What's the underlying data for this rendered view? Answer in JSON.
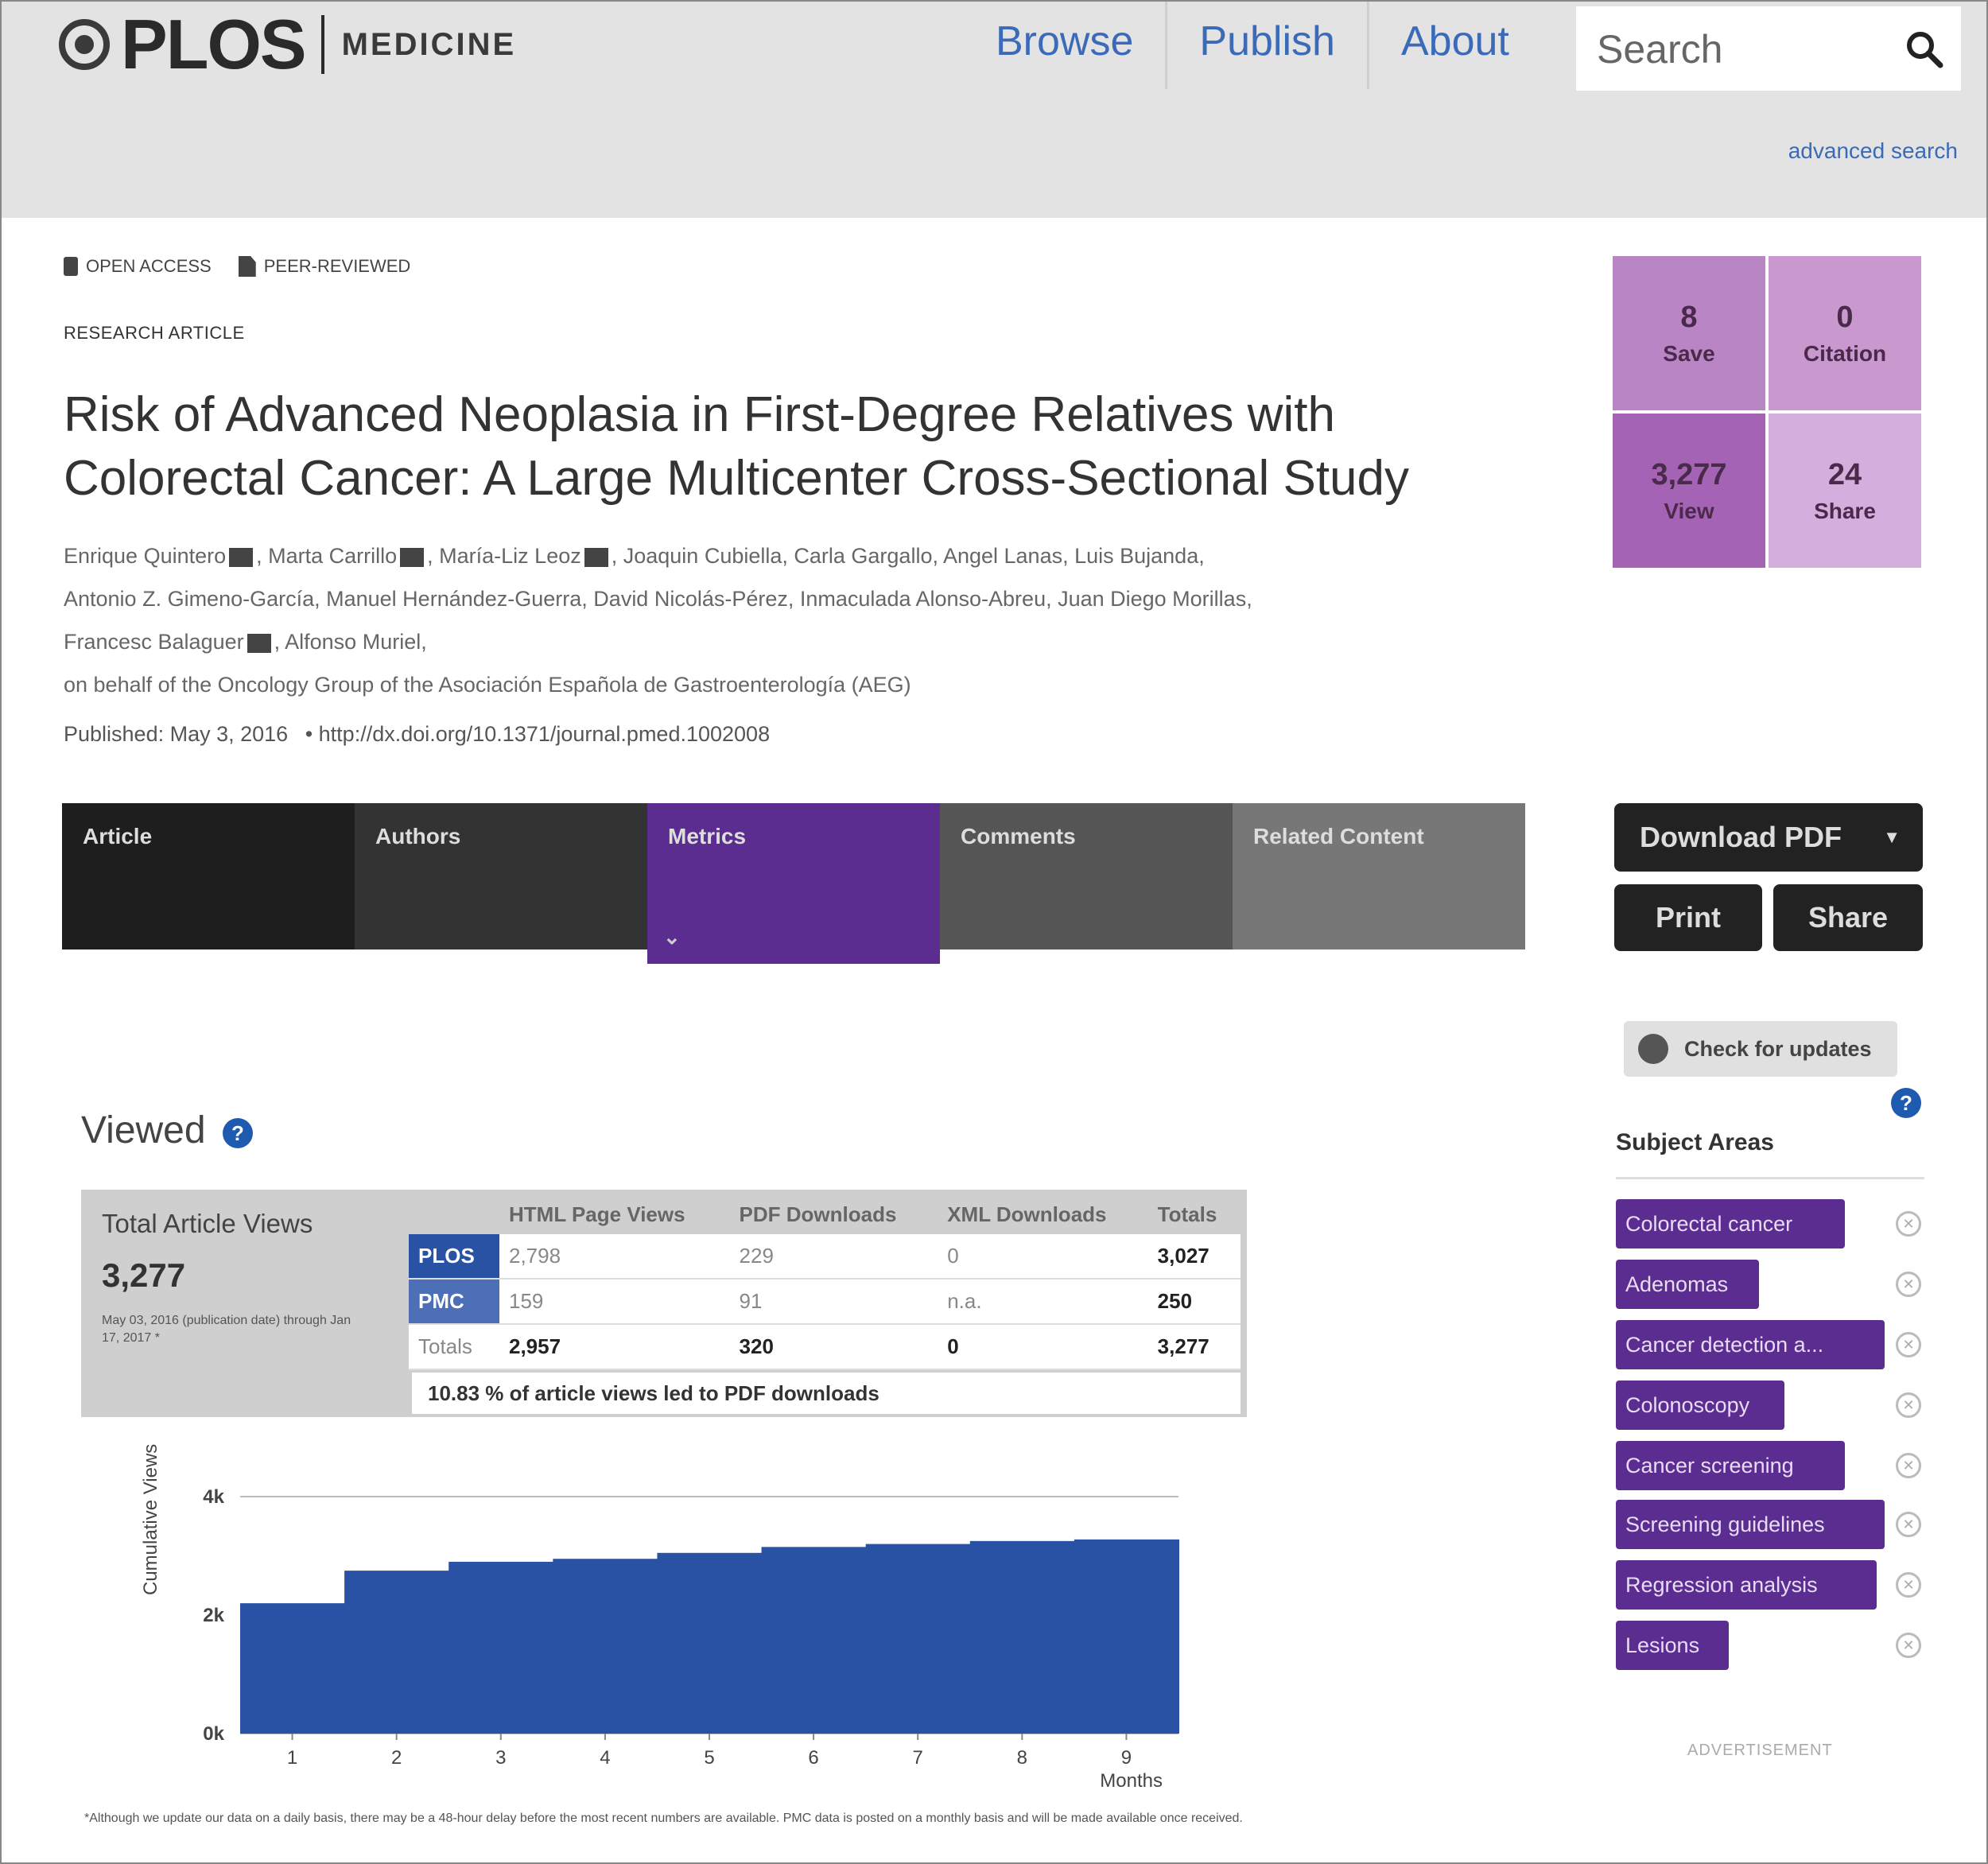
{
  "header": {
    "logo_text": "PLOS",
    "journal": "MEDICINE",
    "nav": [
      "Browse",
      "Publish",
      "About"
    ],
    "search_placeholder": "Search",
    "advanced_search": "advanced search"
  },
  "article": {
    "badges": [
      "OPEN ACCESS",
      "PEER-REVIEWED"
    ],
    "type": "RESEARCH ARTICLE",
    "title": "Risk of Advanced Neoplasia in First-Degree Relatives with Colorectal Cancer: A Large Multicenter Cross-Sectional Study",
    "authors_line1": "Enrique Quintero",
    "authors_line1b": ", Marta Carrillo",
    "authors_line1c": ", María-Liz Leoz",
    "authors_line1d": ", Joaquin Cubiella, Carla Gargallo, Angel Lanas, Luis Bujanda,",
    "authors_line2": "Antonio Z. Gimeno-García, Manuel Hernández-Guerra, David Nicolás-Pérez, Inmaculada Alonso-Abreu, Juan Diego Morillas,",
    "authors_line3a": "Francesc Balaguer",
    "authors_line3b": ", Alfonso Muriel,",
    "authors_line4": "on behalf of the Oncology Group of the Asociación Española de Gastroenterología (AEG)",
    "published": "Published: May 3, 2016",
    "doi": "• http://dx.doi.org/10.1371/journal.pmed.1002008"
  },
  "metrics": {
    "save": {
      "num": "8",
      "label": "Save"
    },
    "citation": {
      "num": "0",
      "label": "Citation"
    },
    "view": {
      "num": "3,277",
      "label": "View"
    },
    "share": {
      "num": "24",
      "label": "Share"
    }
  },
  "tabs": [
    "Article",
    "Authors",
    "Metrics",
    "Comments",
    "Related Content"
  ],
  "active_tab": "Metrics",
  "buttons": {
    "download": "Download PDF",
    "print": "Print",
    "share": "Share",
    "check_updates": "Check for updates"
  },
  "subject_areas": {
    "title": "Subject Areas",
    "items": [
      "Colorectal cancer",
      "Adenomas",
      "Cancer detection a...",
      "Colonoscopy",
      "Cancer screening",
      "Screening guidelines",
      "Regression analysis",
      "Lesions"
    ]
  },
  "advertisement": "ADVERTISEMENT",
  "viewed": {
    "title": "Viewed",
    "total_label": "Total Article Views",
    "total": "3,277",
    "range": "May 03, 2016 (publication date) through Jan 17, 2017 *",
    "table": {
      "headers": [
        "",
        "HTML Page Views",
        "PDF Downloads",
        "XML Downloads",
        "Totals"
      ],
      "rows": [
        [
          "PLOS",
          "2,798",
          "229",
          "0",
          "3,027"
        ],
        [
          "PMC",
          "159",
          "91",
          "n.a.",
          "250"
        ],
        [
          "Totals",
          "2,957",
          "320",
          "0",
          "3,277"
        ]
      ]
    },
    "pdf_pct": "10.83 % of article views led to PDF downloads"
  },
  "chart_data": {
    "type": "area",
    "ylabel": "Cumulative Views",
    "xlabel": "Months",
    "x": [
      1,
      2,
      3,
      4,
      5,
      6,
      7,
      8,
      9
    ],
    "values": [
      2200,
      2750,
      2900,
      2950,
      3050,
      3150,
      3200,
      3250,
      3277
    ],
    "yticks": [
      "4k",
      "2k",
      "0k"
    ],
    "ylim": [
      0,
      4000
    ],
    "color": "#2a52a4"
  },
  "footnote": "*Although we update our data on a daily basis, there may be a 48-hour delay before the most recent numbers are available. PMC data is posted on a monthly basis and will be made available once received.",
  "colors": {
    "header_bg": "#e3e3e3",
    "link": "#3a6ab8",
    "purple": "#5c2d91",
    "chart_blue": "#2a52a4"
  }
}
